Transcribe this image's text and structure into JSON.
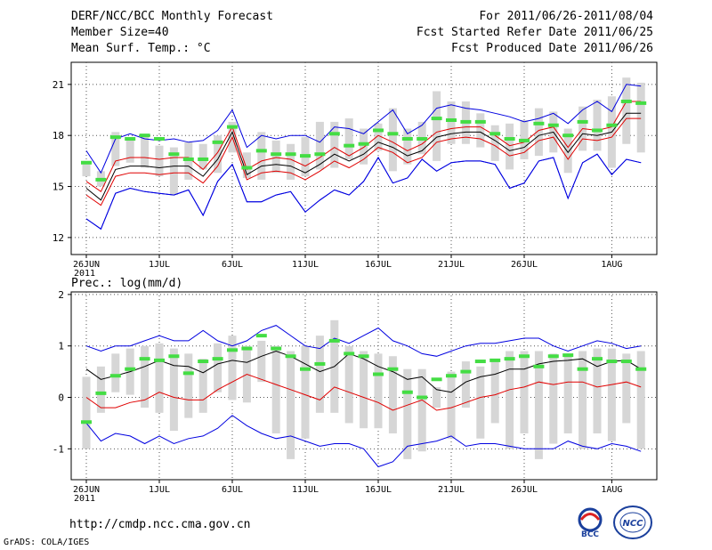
{
  "header": {
    "title": "DERF/NCC/BCC Monthly Forecast",
    "member_size": "Member Size=40",
    "variable": "Mean Surf. Temp.: °C",
    "period": "For 2011/06/26-2011/08/04",
    "started": "Fcst Started Refer Date 2011/06/25",
    "produced": "Fcst Produced Date 2011/06/26"
  },
  "footer": {
    "url": "http://cmdp.ncc.cma.gov.cn",
    "grads": "GrADS: COLA/IGES",
    "logo1_text": "BCC",
    "logo2_text": "NCC"
  },
  "colors": {
    "max_min": "#0000e0",
    "mean": "#000000",
    "spread": "#e00000",
    "box": "#d6d6d6",
    "obs": "#44dd44"
  },
  "chart_data": [
    {
      "type": "line",
      "title": "Mean Surf. Temp.: °C",
      "x_labels": [
        "26JUN",
        "1JUL",
        "6JUL",
        "11JUL",
        "16JUL",
        "21JUL",
        "26JUL",
        "1AUG"
      ],
      "x_label_days": [
        0,
        5,
        10,
        15,
        20,
        25,
        30,
        36
      ],
      "year_label": "2011",
      "ylim": [
        11,
        22.3
      ],
      "yticks": [
        12,
        15,
        18,
        21
      ],
      "ytick_labels": [
        "12",
        "15",
        "18",
        "21"
      ],
      "series": [
        {
          "name": "max",
          "color": "#0000e0",
          "values": [
            13.1,
            12.5,
            14.6,
            14.9,
            14.7,
            14.6,
            14.5,
            14.8,
            13.3,
            15.3,
            16.3,
            14.1,
            14.1,
            14.5,
            14.7,
            13.5,
            14.2,
            14.8,
            14.5,
            15.3,
            16.7,
            15.2,
            15.5,
            16.6,
            15.9,
            16.4,
            16.5,
            16.5,
            16.3,
            14.9,
            15.2,
            16.5,
            16.7,
            14.3,
            16.4,
            16.9,
            15.7,
            16.6,
            16.4
          ]
        },
        {
          "name": "upper",
          "color": "#0000e0",
          "values": [
            17.1,
            15.8,
            17.8,
            18.1,
            17.8,
            17.7,
            17.8,
            17.6,
            17.7,
            18.3,
            19.5,
            17.3,
            18.0,
            17.8,
            18.0,
            18.0,
            17.6,
            18.5,
            18.4,
            18.1,
            18.8,
            19.5,
            18.1,
            18.6,
            19.6,
            19.8,
            19.6,
            19.5,
            19.3,
            19.1,
            18.8,
            19.0,
            19.3,
            18.7,
            19.5,
            20.0,
            19.4,
            21.0,
            20.9
          ]
        },
        {
          "name": "upper_red",
          "color": "#e00000",
          "values": [
            15.3,
            14.7,
            16.5,
            16.7,
            16.7,
            16.6,
            16.7,
            16.7,
            16.0,
            17.0,
            18.5,
            16.0,
            16.5,
            16.7,
            16.6,
            16.2,
            16.7,
            17.3,
            16.8,
            17.3,
            18.0,
            17.6,
            17.1,
            17.5,
            18.2,
            18.4,
            18.5,
            18.5,
            18.0,
            17.4,
            17.6,
            18.3,
            18.5,
            17.3,
            18.4,
            18.3,
            18.5,
            20.0,
            20.0
          ]
        },
        {
          "name": "mean",
          "color": "#000000",
          "values": [
            14.9,
            14.2,
            16.0,
            16.2,
            16.2,
            16.1,
            16.2,
            16.2,
            15.6,
            16.6,
            18.2,
            15.7,
            16.2,
            16.3,
            16.2,
            15.8,
            16.3,
            16.9,
            16.5,
            16.9,
            17.6,
            17.3,
            16.8,
            17.1,
            17.9,
            18.1,
            18.2,
            18.2,
            17.7,
            17.1,
            17.3,
            18.0,
            18.2,
            17.0,
            18.1,
            18.0,
            18.2,
            19.3,
            19.3
          ]
        },
        {
          "name": "lower_red",
          "color": "#e00000",
          "values": [
            14.5,
            13.9,
            15.6,
            15.8,
            15.8,
            15.7,
            15.8,
            15.8,
            15.2,
            16.2,
            17.9,
            15.4,
            15.8,
            15.9,
            15.8,
            15.4,
            15.9,
            16.5,
            16.1,
            16.6,
            17.3,
            17.0,
            16.4,
            16.7,
            17.6,
            17.8,
            17.9,
            17.8,
            17.4,
            16.8,
            17.0,
            17.7,
            17.9,
            16.6,
            17.8,
            17.7,
            17.9,
            19.0,
            19.0
          ]
        },
        {
          "name": "lower",
          "color": "#0000e0",
          "values": [
            13.1,
            12.5,
            14.6,
            14.9,
            14.7,
            14.6,
            14.5,
            14.8,
            13.3,
            15.3,
            16.3,
            14.1,
            14.1,
            14.5,
            14.7,
            13.5,
            14.2,
            14.8,
            14.5,
            15.3,
            16.7,
            15.2,
            15.5,
            16.6,
            15.9,
            16.4,
            16.5,
            16.5,
            16.3,
            14.9,
            15.2,
            16.5,
            16.7,
            14.3,
            16.4,
            16.9,
            15.7,
            16.6,
            16.4
          ]
        }
      ],
      "boxes": {
        "low": [
          15.6,
          15.0,
          16.2,
          16.4,
          16.1,
          15.6,
          14.5,
          15.4,
          16.0,
          15.8,
          17.0,
          15.5,
          15.4,
          15.8,
          15.4,
          15.6,
          16.0,
          16.1,
          16.6,
          16.3,
          17.1,
          15.9,
          16.3,
          16.9,
          16.5,
          17.5,
          17.5,
          17.3,
          16.5,
          16.0,
          16.6,
          16.8,
          17.0,
          15.8,
          17.1,
          17.1,
          16.1,
          17.5,
          17.0
        ],
        "high": [
          16.5,
          15.9,
          18.2,
          17.7,
          18.1,
          17.4,
          17.3,
          17.6,
          17.5,
          18.0,
          18.8,
          17.0,
          18.2,
          17.7,
          17.5,
          17.9,
          18.8,
          18.8,
          19.0,
          18.4,
          18.7,
          19.6,
          18.4,
          18.8,
          20.6,
          20.0,
          20.0,
          19.3,
          18.6,
          18.7,
          18.9,
          19.6,
          19.4,
          18.4,
          19.7,
          20.1,
          20.3,
          21.4,
          21.1
        ]
      },
      "obs": [
        16.4,
        15.4,
        17.9,
        17.8,
        18.0,
        17.8,
        16.9,
        16.6,
        16.6,
        17.6,
        18.5,
        16.1,
        17.1,
        16.9,
        16.9,
        16.8,
        16.9,
        18.1,
        17.4,
        17.5,
        18.3,
        18.1,
        17.8,
        17.8,
        19.0,
        18.9,
        18.8,
        18.8,
        18.1,
        17.8,
        17.7,
        18.7,
        18.6,
        18.0,
        18.8,
        18.3,
        18.6,
        20.0,
        19.9
      ]
    },
    {
      "type": "line",
      "title": "Prec.: log(mm/d)",
      "x_labels": [
        "26JUN",
        "1JUL",
        "6JUL",
        "11JUL",
        "16JUL",
        "21JUL",
        "26JUL",
        "1AUG"
      ],
      "x_label_days": [
        0,
        5,
        10,
        15,
        20,
        25,
        30,
        36
      ],
      "year_label": "2011",
      "ylim": [
        -1.6,
        2.05
      ],
      "yticks": [
        -1,
        0,
        1,
        2
      ],
      "ytick_labels": [
        "-1",
        "0",
        "1",
        "2"
      ],
      "series": [
        {
          "name": "max",
          "color": "#0000e0",
          "values": [
            1.0,
            0.9,
            1.0,
            1.0,
            1.1,
            1.2,
            1.1,
            1.1,
            1.3,
            1.1,
            1.0,
            1.1,
            1.3,
            1.4,
            1.2,
            1.0,
            0.95,
            1.15,
            1.05,
            1.2,
            1.35,
            1.1,
            1.0,
            0.85,
            0.8,
            0.9,
            1.0,
            1.05,
            1.05,
            1.1,
            1.15,
            1.15,
            1.0,
            0.9,
            1.0,
            1.1,
            1.05,
            0.95,
            1.0
          ]
        },
        {
          "name": "mean",
          "color": "#000000",
          "values": [
            0.55,
            0.35,
            0.42,
            0.5,
            0.6,
            0.72,
            0.62,
            0.6,
            0.48,
            0.65,
            0.72,
            0.68,
            0.8,
            0.9,
            0.8,
            0.65,
            0.5,
            0.6,
            0.85,
            0.75,
            0.6,
            0.5,
            0.35,
            0.4,
            0.15,
            0.1,
            0.3,
            0.4,
            0.45,
            0.55,
            0.55,
            0.65,
            0.7,
            0.72,
            0.75,
            0.6,
            0.7,
            0.72,
            0.55
          ]
        },
        {
          "name": "red",
          "color": "#e00000",
          "values": [
            0.0,
            -0.2,
            -0.2,
            -0.1,
            -0.05,
            0.1,
            0.0,
            -0.05,
            -0.05,
            0.15,
            0.3,
            0.45,
            0.35,
            0.25,
            0.15,
            0.05,
            -0.05,
            0.2,
            0.1,
            0.0,
            -0.1,
            -0.25,
            -0.15,
            -0.05,
            -0.25,
            -0.2,
            -0.1,
            0.0,
            0.05,
            0.15,
            0.2,
            0.3,
            0.25,
            0.3,
            0.3,
            0.2,
            0.25,
            0.3,
            0.2
          ]
        },
        {
          "name": "min",
          "color": "#0000e0",
          "values": [
            -0.5,
            -0.85,
            -0.7,
            -0.75,
            -0.9,
            -0.75,
            -0.9,
            -0.8,
            -0.75,
            -0.6,
            -0.35,
            -0.55,
            -0.7,
            -0.8,
            -0.75,
            -0.85,
            -0.95,
            -0.9,
            -0.9,
            -1.0,
            -1.35,
            -1.25,
            -0.95,
            -0.9,
            -0.85,
            -0.75,
            -0.95,
            -0.9,
            -0.9,
            -0.95,
            -1.0,
            -1.0,
            -1.0,
            -0.85,
            -0.95,
            -1.0,
            -0.9,
            -0.95,
            -1.05
          ]
        }
      ],
      "boxes": {
        "low": [
          -1.0,
          -0.3,
          0.1,
          0.05,
          -0.2,
          -0.3,
          -0.65,
          -0.4,
          -0.3,
          0.1,
          -0.05,
          -0.1,
          0.3,
          -0.7,
          -1.2,
          -0.8,
          -0.3,
          -0.3,
          -0.5,
          -0.6,
          -0.6,
          -0.7,
          -1.2,
          -1.05,
          -0.2,
          -0.8,
          -0.2,
          -0.8,
          -0.5,
          -1.0,
          -0.7,
          -1.2,
          -0.9,
          -0.7,
          -1.0,
          -0.7,
          -0.85,
          -0.5,
          -1.0
        ],
        "high": [
          0.4,
          0.6,
          0.85,
          0.95,
          1.0,
          1.05,
          0.95,
          0.85,
          0.75,
          1.05,
          1.2,
          1.0,
          1.1,
          1.0,
          0.9,
          1.0,
          1.2,
          1.5,
          1.0,
          0.9,
          0.85,
          0.8,
          0.55,
          0.55,
          0.2,
          0.5,
          0.7,
          0.6,
          0.75,
          0.9,
          0.9,
          0.9,
          0.85,
          0.85,
          0.9,
          0.95,
          0.95,
          0.85,
          0.9
        ]
      },
      "obs": [
        -0.48,
        0.08,
        0.42,
        0.55,
        0.75,
        0.72,
        0.8,
        0.47,
        0.7,
        0.75,
        0.92,
        0.95,
        1.2,
        0.95,
        0.8,
        0.55,
        0.65,
        1.1,
        0.85,
        0.8,
        0.45,
        0.55,
        0.1,
        0.0,
        0.35,
        0.42,
        0.5,
        0.7,
        0.72,
        0.75,
        0.8,
        0.6,
        0.8,
        0.82,
        0.55,
        0.75,
        0.7,
        0.7,
        0.55
      ]
    }
  ]
}
